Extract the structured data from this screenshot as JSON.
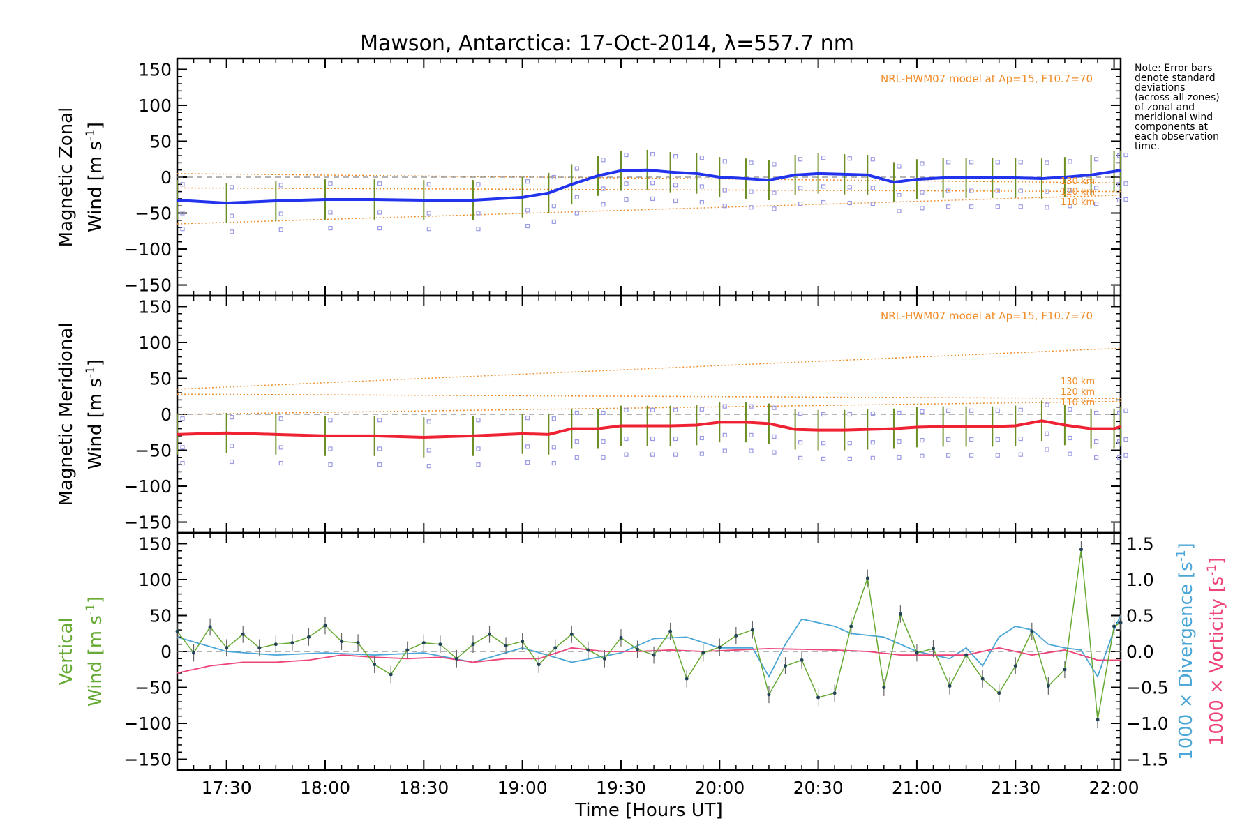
{
  "chart_data": [
    {
      "type": "line",
      "panel": "zonal",
      "title": "Mawson, Antarctica: 17-Oct-2014, λ=557.7 nm",
      "ylabel_line1": "Magnetic Zonal",
      "ylabel_line2": "Wind [m s",
      "ylabel_sup": "-1",
      "ylabel_end": "]",
      "ylim": [
        -165,
        165
      ],
      "xlim": [
        "17:15",
        "22:02"
      ],
      "yticks": [
        "150",
        "100",
        "50",
        "0",
        "−50",
        "−100",
        "−150"
      ],
      "model_label": "NRL-HWM07 model at Ap=15, F10.7=70",
      "model_km": [
        "130 km",
        "120 km",
        "110 km"
      ],
      "note": [
        "Note: Error bars",
        "denote standard",
        "deviations",
        "(across all zones)",
        "of zonal and",
        "meridional wind",
        "components at",
        "each observation",
        "time."
      ],
      "colors": {
        "mean": "#2233ee",
        "error": "#6b8e23",
        "samples": "#9a9ae6",
        "model": "#f08c28"
      },
      "series": [
        {
          "name": "",
          "x": [
            "17:15",
            "17:30",
            "17:45",
            "18:00",
            "18:15",
            "18:30",
            "18:45",
            "19:00",
            "19:08",
            "19:15",
            "19:23",
            "19:30",
            "19:38",
            "19:45",
            "19:53",
            "20:00",
            "20:08",
            "20:15",
            "20:23",
            "20:30",
            "20:38",
            "20:45",
            "20:53",
            "21:00",
            "21:08",
            "21:15",
            "21:23",
            "21:30",
            "21:38",
            "21:45",
            "21:53",
            "22:00",
            "22:02"
          ],
          "values": [
            -32,
            -36,
            -33,
            -31,
            -31,
            -32,
            -32,
            -28,
            -22,
            -10,
            2,
            9,
            10,
            7,
            5,
            0,
            -2,
            -4,
            3,
            5,
            4,
            3,
            -7,
            -3,
            -1,
            -1,
            -1,
            -1,
            -2,
            0,
            3,
            8,
            9
          ]
        }
      ],
      "model_lines": [
        {
          "name": "130 km",
          "x": [
            "17:15",
            "22:02"
          ],
          "values": [
            5,
            -8
          ]
        },
        {
          "name": "120 km",
          "x": [
            "17:15",
            "22:02"
          ],
          "values": [
            -15,
            -20
          ]
        },
        {
          "name": "110 km",
          "x": [
            "17:15",
            "22:02"
          ],
          "values": [
            -65,
            -25
          ]
        }
      ]
    },
    {
      "type": "line",
      "panel": "meridional",
      "ylabel_line1": "Magnetic Meridional",
      "ylabel_line2": "Wind [m s",
      "ylabel_sup": "-1",
      "ylabel_end": "]",
      "ylim": [
        -165,
        165
      ],
      "xlim": [
        "17:15",
        "22:02"
      ],
      "yticks": [
        "150",
        "100",
        "50",
        "0",
        "−50",
        "−100",
        "−150"
      ],
      "model_label": "NRL-HWM07 model at Ap=15, F10.7=70",
      "model_km": [
        "130 km",
        "120 km",
        "110 km"
      ],
      "colors": {
        "mean": "#ee2233",
        "error": "#6b8e23",
        "samples": "#9a9ae6",
        "model": "#f08c28"
      },
      "series": [
        {
          "name": "",
          "x": [
            "17:15",
            "17:30",
            "17:45",
            "18:00",
            "18:15",
            "18:30",
            "18:45",
            "19:00",
            "19:08",
            "19:15",
            "19:23",
            "19:30",
            "19:38",
            "19:45",
            "19:53",
            "20:00",
            "20:08",
            "20:15",
            "20:23",
            "20:30",
            "20:38",
            "20:45",
            "20:53",
            "21:00",
            "21:08",
            "21:15",
            "21:23",
            "21:30",
            "21:38",
            "21:45",
            "21:53",
            "22:00",
            "22:02"
          ],
          "values": [
            -28,
            -26,
            -28,
            -30,
            -30,
            -32,
            -30,
            -27,
            -28,
            -20,
            -20,
            -16,
            -16,
            -16,
            -15,
            -11,
            -11,
            -13,
            -21,
            -22,
            -22,
            -21,
            -20,
            -18,
            -17,
            -17,
            -17,
            -16,
            -9,
            -15,
            -20,
            -20,
            -17
          ]
        }
      ],
      "model_lines": [
        {
          "name": "130 km",
          "x": [
            "17:15",
            "22:02"
          ],
          "values": [
            35,
            92
          ]
        },
        {
          "name": "120 km",
          "x": [
            "17:15",
            "22:02"
          ],
          "values": [
            28,
            22
          ]
        },
        {
          "name": "110 km",
          "x": [
            "17:15",
            "22:02"
          ],
          "values": [
            0,
            18
          ]
        }
      ]
    },
    {
      "type": "line",
      "panel": "vertical",
      "ylabel_line1": "Vertical",
      "ylabel_line2": "Wind [m s",
      "ylabel_sup": "-1",
      "ylabel_end": "]",
      "ylim": [
        -165,
        165
      ],
      "xlim": [
        "17:15",
        "22:02"
      ],
      "yticks": [
        "150",
        "100",
        "50",
        "0",
        "−50",
        "−100",
        "−150"
      ],
      "y2lim": [
        -1.65,
        1.65
      ],
      "y2ticks": [
        "1.5",
        "1.0",
        "0.5",
        "0.0",
        "−0.5",
        "−1.0",
        "−1.5"
      ],
      "y2label_div": "1000 × Divergence [s",
      "y2label_vor": "1000 × Vorticity [s",
      "y2label_sup": "-1",
      "y2label_end": "]",
      "xticks": [
        "17:30",
        "18:00",
        "18:30",
        "19:00",
        "19:30",
        "20:00",
        "20:30",
        "21:00",
        "21:30",
        "22:00"
      ],
      "xlabel": "Time [Hours UT]",
      "colors": {
        "vertical": "#66aa33",
        "divergence": "#4aa6d6",
        "vorticity": "#ee4477"
      },
      "series": [
        {
          "name": "",
          "x": [
            "17:15",
            "17:20",
            "17:25",
            "17:30",
            "17:35",
            "17:40",
            "17:45",
            "17:50",
            "17:55",
            "18:00",
            "18:05",
            "18:10",
            "18:15",
            "18:20",
            "18:25",
            "18:30",
            "18:35",
            "18:40",
            "18:45",
            "18:50",
            "18:55",
            "19:00",
            "19:05",
            "19:10",
            "19:15",
            "19:20",
            "19:25",
            "19:30",
            "19:35",
            "19:40",
            "19:45",
            "19:50",
            "19:55",
            "20:00",
            "20:05",
            "20:10",
            "20:15",
            "20:20",
            "20:25",
            "20:30",
            "20:35",
            "20:40",
            "20:45",
            "20:50",
            "20:55",
            "21:00",
            "21:05",
            "21:10",
            "21:15",
            "21:20",
            "21:25",
            "21:30",
            "21:35",
            "21:40",
            "21:45",
            "21:50",
            "21:55",
            "22:00",
            "22:02"
          ],
          "values": [
            28,
            -2,
            34,
            5,
            24,
            5,
            10,
            12,
            20,
            36,
            14,
            12,
            -18,
            -32,
            2,
            12,
            10,
            -10,
            10,
            24,
            8,
            14,
            -18,
            5,
            24,
            2,
            -10,
            19,
            3,
            -5,
            28,
            -38,
            -2,
            6,
            22,
            30,
            -60,
            -20,
            -12,
            -64,
            -58,
            35,
            102,
            -50,
            52,
            -2,
            4,
            -48,
            -5,
            -38,
            -58,
            -20,
            28,
            -48,
            -25,
            142,
            -95,
            35,
            40
          ]
        },
        {
          "name": "",
          "axis": "right",
          "x": [
            "17:15",
            "17:30",
            "17:45",
            "18:00",
            "18:15",
            "18:30",
            "18:45",
            "19:00",
            "19:15",
            "19:30",
            "19:40",
            "19:50",
            "20:00",
            "20:10",
            "20:15",
            "20:20",
            "20:25",
            "20:30",
            "20:35",
            "20:40",
            "20:50",
            "21:00",
            "21:10",
            "21:15",
            "21:20",
            "21:25",
            "21:30",
            "21:35",
            "21:40",
            "21:45",
            "21:50",
            "21:55",
            "22:00",
            "22:02"
          ],
          "values": [
            0.2,
            0.0,
            -0.05,
            -0.02,
            -0.05,
            -0.02,
            -0.15,
            0.05,
            -0.15,
            -0.02,
            0.18,
            0.2,
            0.05,
            0.05,
            -0.35,
            0.1,
            0.45,
            0.4,
            0.35,
            0.25,
            0.2,
            0.0,
            -0.1,
            0.05,
            -0.2,
            0.2,
            0.35,
            0.3,
            0.1,
            0.05,
            0.02,
            -0.35,
            0.3,
            0.5
          ]
        },
        {
          "name": "",
          "axis": "right",
          "x": [
            "17:15",
            "17:25",
            "17:35",
            "17:45",
            "17:55",
            "18:05",
            "18:15",
            "18:25",
            "18:35",
            "18:45",
            "18:55",
            "19:05",
            "19:15",
            "19:25",
            "19:35",
            "19:45",
            "19:55",
            "20:05",
            "20:15",
            "20:25",
            "20:35",
            "20:45",
            "20:55",
            "21:05",
            "21:15",
            "21:25",
            "21:35",
            "21:45",
            "21:55",
            "22:02"
          ],
          "values": [
            -0.3,
            -0.2,
            -0.15,
            -0.15,
            -0.12,
            -0.05,
            -0.08,
            -0.1,
            -0.08,
            -0.15,
            -0.1,
            -0.1,
            0.05,
            0.0,
            0.0,
            0.02,
            0.0,
            0.02,
            0.04,
            0.03,
            0.02,
            0.0,
            -0.05,
            -0.05,
            -0.05,
            0.05,
            -0.05,
            0.02,
            -0.12,
            -0.12
          ]
        }
      ]
    }
  ]
}
